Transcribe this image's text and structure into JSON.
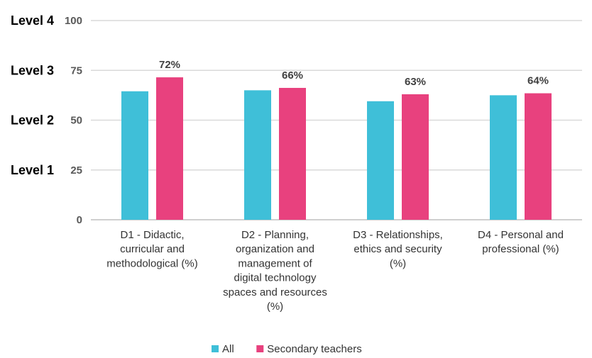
{
  "chart_data": {
    "type": "bar",
    "title": "",
    "xlabel": "",
    "ylabel": "",
    "ylim": [
      0,
      100
    ],
    "yticks": [
      0,
      25,
      50,
      75,
      100
    ],
    "grid": true,
    "legend_position": "bottom",
    "level_labels": [
      {
        "value": 100,
        "label": "Level 4"
      },
      {
        "value": 75,
        "label": "Level 3"
      },
      {
        "value": 50,
        "label": "Level 2"
      },
      {
        "value": 25,
        "label": "Level 1"
      }
    ],
    "categories": [
      [
        "D1 - Didactic,",
        "curricular and",
        "methodological (%)"
      ],
      [
        "D2 - Planning,",
        "organization and",
        "management of",
        "digital technology",
        "spaces and resources",
        "(%)"
      ],
      [
        "D3 - Relationships,",
        "ethics and security",
        "(%)"
      ],
      [
        "D4 - Personal and",
        "professional (%)"
      ]
    ],
    "series": [
      {
        "name": "All",
        "color": "#3fbfd8",
        "values": [
          64.5,
          65,
          59.5,
          62.5
        ],
        "data_labels": [
          "",
          "",
          "",
          ""
        ]
      },
      {
        "name": "Secondary teachers",
        "color": "#e8417e",
        "values": [
          71.5,
          66.2,
          63,
          63.5
        ],
        "data_labels": [
          "72%",
          "66%",
          "63%",
          "64%"
        ]
      }
    ]
  }
}
